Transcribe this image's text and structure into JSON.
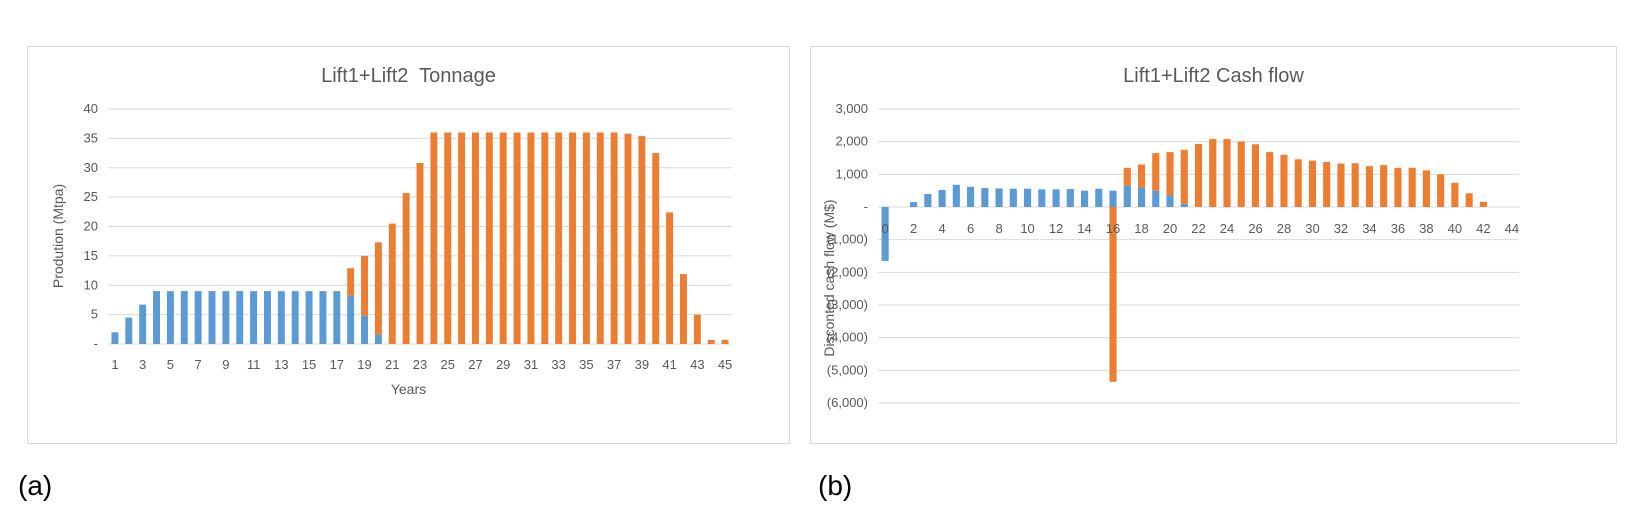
{
  "chart_data": [
    {
      "type": "bar",
      "stacked": true,
      "title": "Lift1+Lift2  Tonnage",
      "xlabel": "Years",
      "ylabel": "Prodution (Mtpa)",
      "ylim": [
        0,
        40
      ],
      "yticks": [
        0,
        5,
        10,
        15,
        20,
        25,
        30,
        35,
        40
      ],
      "ytick_labels": [
        "-",
        "5",
        "10",
        "15",
        "20",
        "25",
        "30",
        "35",
        "40"
      ],
      "x": [
        1,
        2,
        3,
        4,
        5,
        6,
        7,
        8,
        9,
        10,
        11,
        12,
        13,
        14,
        15,
        16,
        17,
        18,
        19,
        20,
        21,
        22,
        23,
        24,
        25,
        26,
        27,
        28,
        29,
        30,
        31,
        32,
        33,
        34,
        35,
        36,
        37,
        38,
        39,
        40,
        41,
        42,
        43,
        44,
        45
      ],
      "xtick_labels_shown": [
        "1",
        "3",
        "5",
        "7",
        "9",
        "11",
        "13",
        "15",
        "17",
        "19",
        "21",
        "23",
        "25",
        "27",
        "29",
        "31",
        "33",
        "35",
        "37",
        "39",
        "41",
        "43",
        "45"
      ],
      "grid": true,
      "series": [
        {
          "color": "#5b9bd5",
          "values": [
            2,
            4.5,
            6.7,
            9,
            9,
            9,
            9,
            9,
            9,
            9,
            9,
            9,
            9,
            9,
            9,
            9,
            9,
            8.2,
            4.8,
            1.6,
            0,
            0,
            0,
            0,
            0,
            0,
            0,
            0,
            0,
            0,
            0,
            0,
            0,
            0,
            0,
            0,
            0,
            0,
            0,
            0,
            0,
            0,
            0,
            0,
            0
          ]
        },
        {
          "color": "#ed7d31",
          "values": [
            0,
            0,
            0,
            0,
            0,
            0,
            0,
            0,
            0,
            0,
            0,
            0,
            0,
            0,
            0,
            0,
            0,
            4.7,
            10.2,
            15.7,
            20.5,
            25.7,
            30.8,
            36,
            36,
            36,
            36,
            36,
            36,
            36,
            36,
            36,
            36,
            36,
            36,
            36,
            36,
            35.8,
            35.4,
            32.5,
            22.4,
            11.9,
            5,
            0.7,
            0.7
          ]
        }
      ]
    },
    {
      "type": "bar",
      "stacked": true,
      "title": "Lift1+Lift2 Cash flow",
      "xlabel": "",
      "ylabel": "Disconted cash flow (M$)",
      "ylim": [
        -6000,
        3000
      ],
      "yticks": [
        3000,
        2000,
        1000,
        0,
        -1000,
        -2000,
        -3000,
        -4000,
        -5000,
        -6000
      ],
      "ytick_labels": [
        "3,000",
        "2,000",
        "1,000",
        "-",
        "(1,000)",
        "(2,000)",
        "(3,000)",
        "(4,000)",
        "(5,000)",
        "(6,000)"
      ],
      "x": [
        0,
        1,
        2,
        3,
        4,
        5,
        6,
        7,
        8,
        9,
        10,
        11,
        12,
        13,
        14,
        15,
        16,
        17,
        18,
        19,
        20,
        21,
        22,
        23,
        24,
        25,
        26,
        27,
        28,
        29,
        30,
        31,
        32,
        33,
        34,
        35,
        36,
        37,
        38,
        39,
        40,
        41,
        42,
        43,
        44
      ],
      "xtick_labels_shown": [
        "0",
        "2",
        "4",
        "6",
        "8",
        "10",
        "12",
        "14",
        "16",
        "18",
        "20",
        "22",
        "24",
        "26",
        "28",
        "30",
        "32",
        "34",
        "36",
        "38",
        "40",
        "42",
        "44"
      ],
      "grid": true,
      "series": [
        {
          "color": "#5b9bd5",
          "values": [
            -1650,
            0,
            150,
            400,
            520,
            680,
            620,
            580,
            570,
            560,
            560,
            540,
            540,
            550,
            500,
            560,
            500,
            650,
            600,
            500,
            350,
            100,
            0,
            0,
            0,
            0,
            0,
            0,
            0,
            0,
            0,
            0,
            0,
            0,
            0,
            0,
            0,
            0,
            0,
            0,
            0,
            0,
            0,
            0,
            0
          ]
        },
        {
          "color": "#ed7d31",
          "values": [
            0,
            0,
            0,
            0,
            0,
            0,
            0,
            0,
            0,
            0,
            0,
            0,
            0,
            0,
            0,
            0,
            -5350,
            550,
            700,
            1150,
            1330,
            1650,
            1930,
            2080,
            2080,
            2000,
            1920,
            1680,
            1600,
            1460,
            1420,
            1380,
            1330,
            1340,
            1250,
            1280,
            1200,
            1200,
            1120,
            1000,
            740,
            420,
            160,
            0,
            0
          ]
        }
      ]
    }
  ],
  "labels": {
    "a": "(a)",
    "b": "(b)"
  }
}
